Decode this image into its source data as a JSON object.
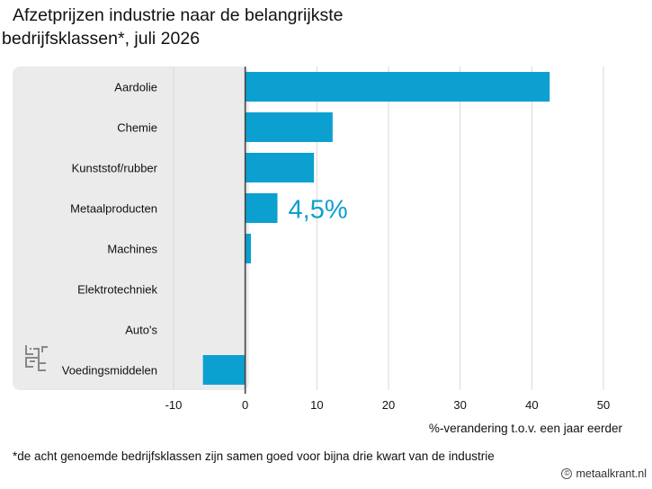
{
  "title_line1": "Afzetprijzen industrie naar de belangrijkste",
  "title_line2": "bedrijfsklassen*, juli 2026",
  "footnote": "*de acht genoemde bedrijfsklassen zijn samen goed voor bijna drie kwart van de industrie",
  "credit": "metaalkrant.nl",
  "logo_icon": "cbs-logo-icon",
  "colors": {
    "bar": "#0ca0d0",
    "panel": "#ebebeb",
    "grid": "#d8d8d8",
    "highlight_text": "#0ca0d0"
  },
  "chart_data": {
    "type": "bar",
    "orientation": "horizontal",
    "categories": [
      "Aardolie",
      "Chemie",
      "Kunststof/rubber",
      "Metaalproducten",
      "Machines",
      "Elektrotechniek",
      "Auto's",
      "Voedingsmiddelen"
    ],
    "values": [
      42.5,
      12.2,
      9.6,
      4.5,
      0.8,
      0.1,
      0.0,
      -5.9
    ],
    "xlim": [
      -10,
      50
    ],
    "xticks": [
      -10,
      0,
      10,
      20,
      30,
      40,
      50
    ],
    "xlabel": "%-verandering t.o.v. een jaar eerder",
    "annotation": {
      "category": "Metaalproducten",
      "text": "4,5%"
    },
    "grid": true
  }
}
